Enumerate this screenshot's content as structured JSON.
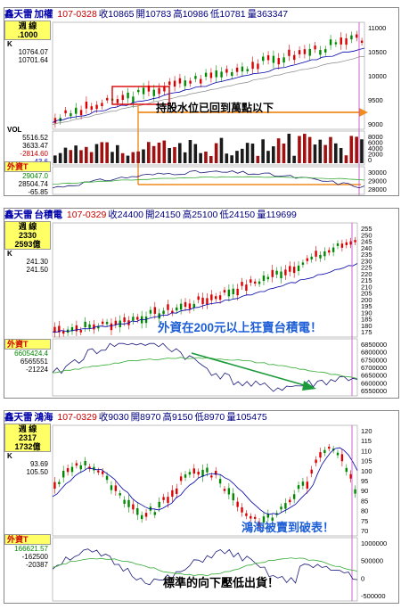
{
  "panels": [
    {
      "header": {
        "title": "加權",
        "prefix": "鑫天雷",
        "date": "107-0328",
        "close_label": "收10865",
        "open_label": "開10783",
        "high_label": "高10986",
        "low_label": "低10781",
        "vol_label": "量363347"
      },
      "period": "週 線",
      "period_value": ".1000",
      "k_label": "K",
      "side_values": [
        "10764.07",
        "10701.64"
      ],
      "vol_title": "VOL",
      "vol_values": [
        "5516.52",
        "3633.47",
        "-2814.60",
        "-43.6"
      ],
      "foreign_title": "外資T",
      "foreign_values": [
        "29047.0",
        "28504.74",
        "-65.85"
      ],
      "price_ticks": [
        "11000",
        "10500",
        "10000",
        "9500",
        "9000"
      ],
      "vol_ticks": [
        "8000",
        "6000",
        "4000",
        "2000",
        "0"
      ],
      "foreign_ticks": [
        "30000",
        "29000",
        "28000"
      ],
      "annotation": "持股水位已回到萬點以下",
      "colors": {
        "annotation": "#000000",
        "arrow": "#f08c1e",
        "box": "#dd0000"
      }
    },
    {
      "header": {
        "title": "台積電",
        "prefix": "鑫天雷",
        "date": "107-0329",
        "close_label": "收24400",
        "open_label": "開24150",
        "high_label": "高25100",
        "low_label": "低24150",
        "vol_label": "量119699"
      },
      "period": "週 線",
      "period_value": "2330",
      "period_value2": "2593億",
      "k_label": "K",
      "side_values": [
        "241.30",
        "241.50"
      ],
      "foreign_title": "外資T",
      "foreign_values": [
        "6605424.4",
        "6565551",
        "-21224"
      ],
      "price_ticks": [
        "255",
        "250",
        "245",
        "240",
        "235",
        "230",
        "225",
        "220",
        "215",
        "210",
        "205",
        "200",
        "195",
        "190",
        "185",
        "180",
        "175"
      ],
      "foreign_ticks": [
        "6850000",
        "6800000",
        "6750000",
        "6700000",
        "6650000",
        "6600000",
        "6550000"
      ],
      "annotation": "外資在200元以上狂賣台積電！",
      "colors": {
        "annotation": "#1f5fd6",
        "arrow": "#1a9a3a"
      }
    },
    {
      "header": {
        "title": "鴻海",
        "prefix": "鑫天雷",
        "date": "107-0329",
        "close_label": "收9030",
        "open_label": "開8970",
        "high_label": "高9150",
        "low_label": "低8970",
        "vol_label": "量105475"
      },
      "period": "週 線",
      "period_value": "2317",
      "period_value2": "1732億",
      "k_label": "K",
      "side_values": [
        "93.69",
        "105.50"
      ],
      "foreign_title": "外資T",
      "foreign_values": [
        "166621.57",
        "-162500",
        "-20387"
      ],
      "price_ticks": [
        "120",
        "115",
        "110",
        "105",
        "100",
        "95",
        "90",
        "85",
        "80",
        "75",
        "70"
      ],
      "foreign_ticks": [
        "1000000",
        "500000",
        "0",
        "-500000"
      ],
      "annotation1": "鴻海被賣到破表！",
      "annotation2": "標準的向下壓低出貨！",
      "colors": {
        "annotation1": "#1f5fd6",
        "annotation2": "#000000"
      }
    }
  ]
}
